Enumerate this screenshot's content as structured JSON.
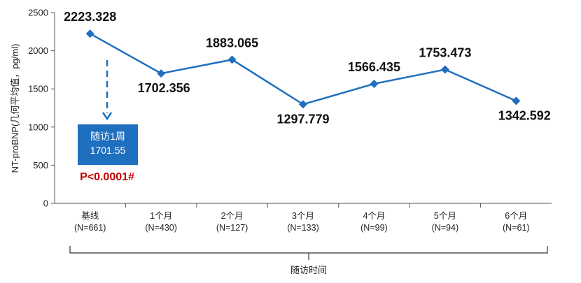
{
  "chart_data": {
    "type": "line",
    "title": "",
    "ylabel": "NT-proBNP(几何平均值，pg/ml)",
    "xlabel": "随访时间",
    "ylim": [
      0,
      2500
    ],
    "yticks": [
      0,
      500,
      1000,
      1500,
      2000,
      2500
    ],
    "categories": [
      "基线",
      "1个月",
      "2个月",
      "3个月",
      "4个月",
      "5个月",
      "6个月"
    ],
    "category_counts": [
      "(N=661)",
      "(N=430)",
      "(N=127)",
      "(N=133)",
      "(N=99)",
      "(N=94)",
      "(N=61)"
    ],
    "series": [
      {
        "name": "NT-proBNP",
        "values": [
          2223.328,
          1702.356,
          1883.065,
          1297.779,
          1566.435,
          1753.473,
          1342.592
        ],
        "labels": [
          "2223.328",
          "1702.356",
          "1883.065",
          "1297.779",
          "1566.435",
          "1753.473",
          "1342.592"
        ],
        "color": "#1f6fbf"
      }
    ],
    "annotation": {
      "box_title": "随访1周",
      "box_value": "1701.55",
      "p_value": "P<0.0001#",
      "box_color": "#1f6fbf",
      "p_color": "#c00000"
    },
    "grid": false
  }
}
